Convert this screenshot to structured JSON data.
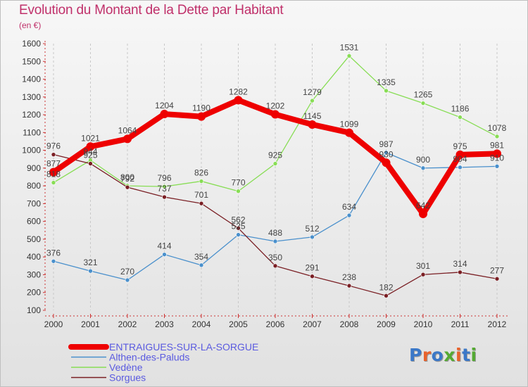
{
  "header": {
    "title": "Evolution du Montant de la Dette par Habitant",
    "unit": "(en €)"
  },
  "logo": {
    "text": "Proxiti",
    "colors": [
      "#3b78c8",
      "#e8622c",
      "#3b78c8",
      "#55aa33",
      "#e8622c",
      "#3b78c8",
      "#55aa33"
    ]
  },
  "chart_data": {
    "type": "line",
    "title": "Evolution du Montant de la Dette par Habitant",
    "subtitle": "(en €)",
    "xlabel": "",
    "ylabel": "",
    "x": [
      "2000",
      "2001",
      "2002",
      "2003",
      "2004",
      "2005",
      "2006",
      "2007",
      "2008",
      "2009",
      "2010",
      "2011",
      "2012"
    ],
    "ylim": [
      100,
      1600
    ],
    "yticks": [
      100,
      200,
      300,
      400,
      500,
      600,
      700,
      800,
      900,
      1000,
      1100,
      1200,
      1300,
      1400,
      1500,
      1600
    ],
    "grid": "vertical dashed",
    "legend_position": "bottom-left",
    "series": [
      {
        "name": "ENTRAIGUES-SUR-LA-SORGUE",
        "color": "#ee0000",
        "emphasis": true,
        "values": [
          877,
          1021,
          1064,
          1204,
          1190,
          1282,
          1202,
          1145,
          1099,
          930,
          642,
          975,
          981
        ]
      },
      {
        "name": "Althen-des-Paluds",
        "color": "#4a90cc",
        "values": [
          376,
          321,
          270,
          414,
          354,
          525,
          488,
          512,
          634,
          987,
          900,
          904,
          910
        ]
      },
      {
        "name": "Vedène",
        "color": "#88dd55",
        "values": [
          818,
          944,
          800,
          796,
          826,
          770,
          925,
          1279,
          1531,
          1335,
          1265,
          1186,
          1078
        ]
      },
      {
        "name": "Sorgues",
        "color": "#7a1f24",
        "values": [
          976,
          925,
          792,
          737,
          701,
          562,
          350,
          291,
          238,
          182,
          301,
          314,
          277
        ]
      }
    ]
  }
}
